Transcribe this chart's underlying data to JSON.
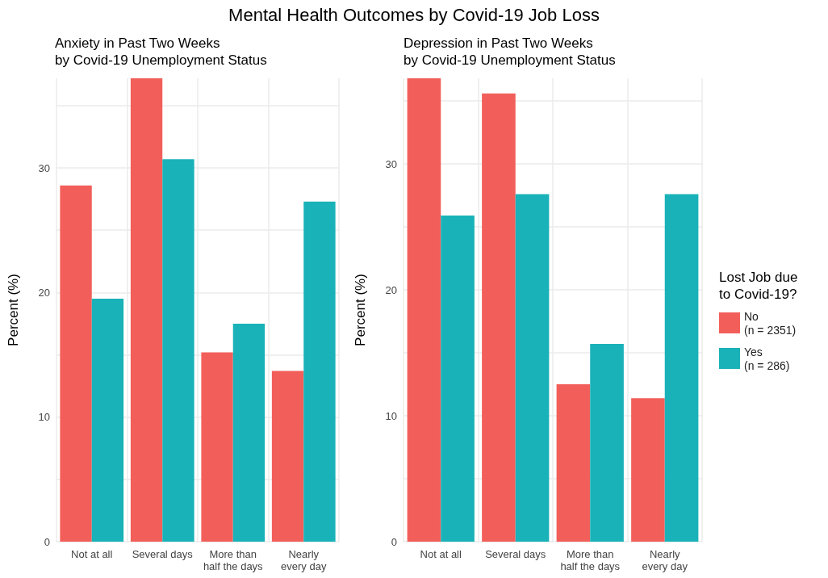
{
  "chart_data": [
    {
      "type": "bar",
      "title": "Anxiety in Past Two Weeks\nby Covid-19 Unemployment Status",
      "ylabel": "Percent (%)",
      "annotations": [
        "Mental Health Outcomes by Covid-19 Job Loss"
      ],
      "categories": [
        "Not at all",
        "Several days",
        "More than\nhalf the days",
        "Nearly\nevery day"
      ],
      "series": [
        {
          "color": "#f25f5a",
          "values": [
            28.6,
            37.2,
            15.2,
            13.7
          ]
        },
        {
          "color": "#19b2b8",
          "values": [
            19.5,
            30.7,
            17.5,
            27.3
          ]
        }
      ],
      "ylim": [
        0,
        37.2
      ],
      "yticks": [
        0,
        {
          "value": 5,
          "label": null
        },
        10,
        {
          "value": 15,
          "label": null
        },
        20,
        {
          "value": 25,
          "label": null
        },
        30,
        {
          "value": 35,
          "label": null
        }
      ],
      "grid": true,
      "legend": false
    },
    {
      "type": "bar",
      "title": "Depression in Past Two Weeks\nby Covid-19 Unemployment Status",
      "ylabel": "Percent (%)",
      "legend_title": "Lost Job due\nto Covid-19?",
      "categories": [
        "Not at all",
        "Several days",
        "More than\nhalf the days",
        "Nearly\nevery day"
      ],
      "series": [
        {
          "name": "No\n(n = 2351)",
          "color": "#f25f5a",
          "values": [
            36.8,
            35.6,
            12.5,
            11.4
          ]
        },
        {
          "name": "Yes\n(n = 286)",
          "color": "#19b2b8",
          "values": [
            25.9,
            27.6,
            15.7,
            27.6
          ]
        }
      ],
      "ylim": [
        0,
        36.8
      ],
      "yticks": [
        0,
        {
          "value": 5,
          "label": null
        },
        10,
        {
          "value": 15,
          "label": null
        },
        20,
        {
          "value": 25,
          "label": null
        },
        30,
        {
          "value": 35,
          "label": null
        }
      ],
      "grid": true,
      "legend": "right"
    }
  ]
}
